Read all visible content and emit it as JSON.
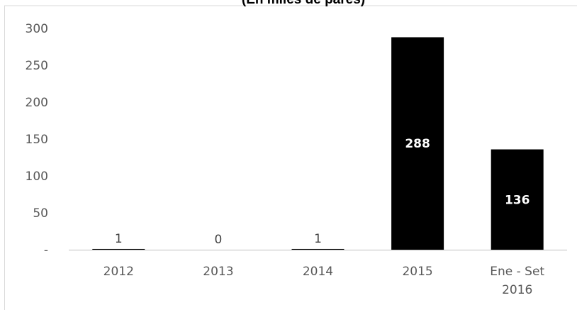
{
  "chart_data": {
    "type": "bar",
    "title": "(En miles de pares)",
    "categories": [
      [
        "2012"
      ],
      [
        "2013"
      ],
      [
        "2014"
      ],
      [
        "2015"
      ],
      [
        "Ene - Set",
        "2016"
      ]
    ],
    "values": [
      1,
      0,
      1,
      288,
      136
    ],
    "data_labels": [
      "1",
      "0",
      "1",
      "288",
      "136"
    ],
    "y_ticks": [
      0,
      50,
      100,
      150,
      200,
      250,
      300
    ],
    "y_tick_labels": [
      "-",
      "50",
      "100",
      "150",
      "200",
      "250",
      "300"
    ],
    "ylim": [
      0,
      300
    ],
    "bar_color": "#000000",
    "label_color_inside": "#ffffff",
    "label_color_outside": "#404040",
    "axis_color": "#bfbfbf",
    "grid": false,
    "xlabel": "",
    "ylabel": ""
  }
}
